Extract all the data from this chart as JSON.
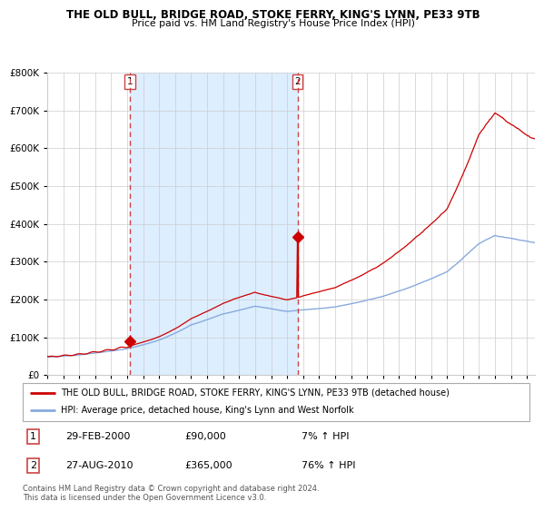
{
  "title1": "THE OLD BULL, BRIDGE ROAD, STOKE FERRY, KING'S LYNN, PE33 9TB",
  "title2": "Price paid vs. HM Land Registry's House Price Index (HPI)",
  "red_label": "THE OLD BULL, BRIDGE ROAD, STOKE FERRY, KING'S LYNN, PE33 9TB (detached house)",
  "blue_label": "HPI: Average price, detached house, King's Lynn and West Norfolk",
  "annotation1_date": "29-FEB-2000",
  "annotation1_price": "£90,000",
  "annotation1_hpi": "7% ↑ HPI",
  "annotation2_date": "27-AUG-2010",
  "annotation2_price": "£365,000",
  "annotation2_hpi": "76% ↑ HPI",
  "footnote": "Contains HM Land Registry data © Crown copyright and database right 2024.\nThis data is licensed under the Open Government Licence v3.0.",
  "sale1_year": 2000.16,
  "sale1_value": 90000,
  "sale2_year": 2010.65,
  "sale2_value": 365000,
  "ylim": [
    0,
    800000
  ],
  "xlim_start": 1995,
  "xlim_end": 2025.5,
  "background_color": "#ffffff",
  "highlight_color": "#ddeeff",
  "grid_color": "#cccccc",
  "red_color": "#cc0000",
  "blue_color": "#88aadd",
  "dashed_color": "#cc4444",
  "border_color": "#aaaaaa"
}
